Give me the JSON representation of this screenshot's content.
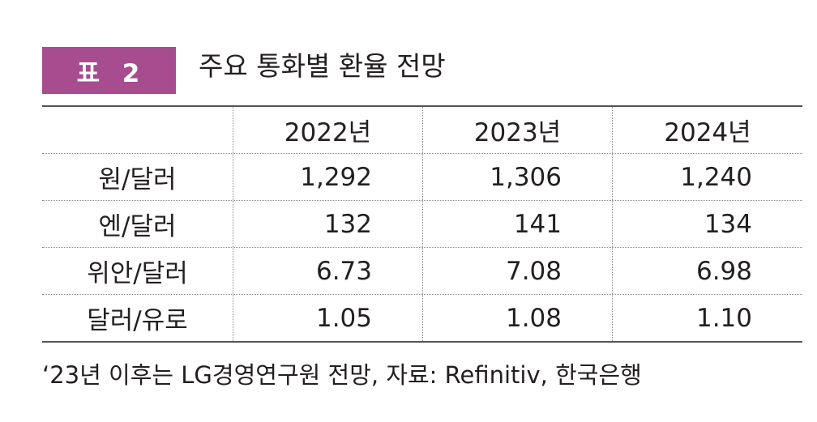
{
  "badge": {
    "text": "표  2"
  },
  "title": "주요 통화별 환율 전망",
  "table": {
    "headers": [
      "",
      "2022년",
      "2023년",
      "2024년"
    ],
    "rows": [
      {
        "label": "원/달러",
        "values": [
          "1,292",
          "1,306",
          "1,240"
        ]
      },
      {
        "label": "엔/달러",
        "values": [
          "132",
          "141",
          "134"
        ]
      },
      {
        "label": "위안/달러",
        "values": [
          "6.73",
          "7.08",
          "6.98"
        ]
      },
      {
        "label": "달러/유로",
        "values": [
          "1.05",
          "1.08",
          "1.10"
        ]
      }
    ]
  },
  "note": "‘23년 이후는 LG경영연구원 전망, 자료: Refinitiv, 한국은행",
  "colors": {
    "badge_background": "#a64c8f",
    "badge_text": "#ffffff",
    "text": "#231f20",
    "rule": "#555555"
  }
}
